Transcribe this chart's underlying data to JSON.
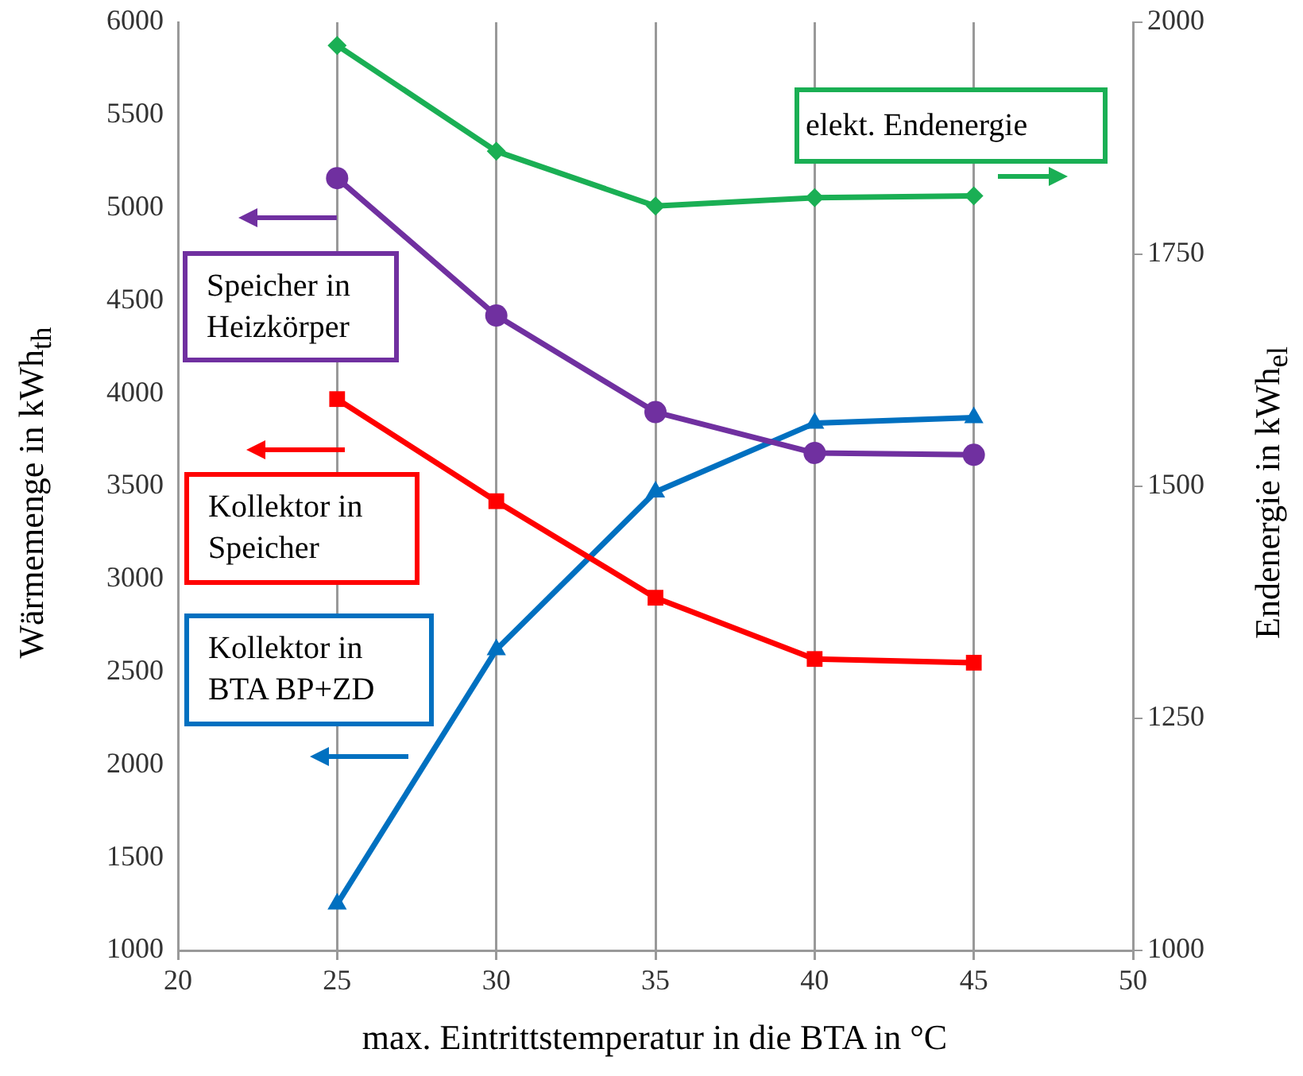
{
  "chart_data": {
    "type": "line",
    "xlabel": "max. Eintrittstemperatur in die BTA in °C",
    "ylabel": "Wärmemenge in kWh$_{th}$",
    "y2label": "Endenergie in kWh$_{el}$",
    "x": [
      25,
      30,
      35,
      40,
      45
    ],
    "xlim": [
      20,
      50
    ],
    "xticks": [
      20,
      25,
      30,
      35,
      40,
      45,
      50
    ],
    "ylim": [
      1000,
      6000
    ],
    "yticks": [
      1000,
      1500,
      2000,
      2500,
      3000,
      3500,
      4000,
      4500,
      5000,
      5500,
      6000
    ],
    "y2lim": [
      1000,
      2000
    ],
    "y2ticks": [
      1000,
      1250,
      1500,
      1750,
      2000
    ],
    "grid": "x",
    "legend": "left",
    "line_style": "solid",
    "series": [
      {
        "name": "elekt. Endenergie",
        "color": "#1aaf54",
        "axis": "y2",
        "marker": "diamond",
        "values": [
          1975,
          1861,
          1802,
          1811,
          1813
        ]
      },
      {
        "name": "Speicher in Heizkörper",
        "color": "#7030a0",
        "axis": "y",
        "marker": "circle",
        "values": [
          5160,
          4420,
          3900,
          3680,
          3670
        ]
      },
      {
        "name": "Kollektor in Speicher",
        "color": "#ff0000",
        "axis": "y",
        "marker": "square",
        "values": [
          3970,
          3420,
          2900,
          2570,
          2550
        ]
      },
      {
        "name": "Kollektor in BTA BP+ZD",
        "color": "#0070c0",
        "axis": "y",
        "marker": "triangle",
        "values": [
          1250,
          2620,
          3470,
          3840,
          3870
        ]
      }
    ]
  }
}
